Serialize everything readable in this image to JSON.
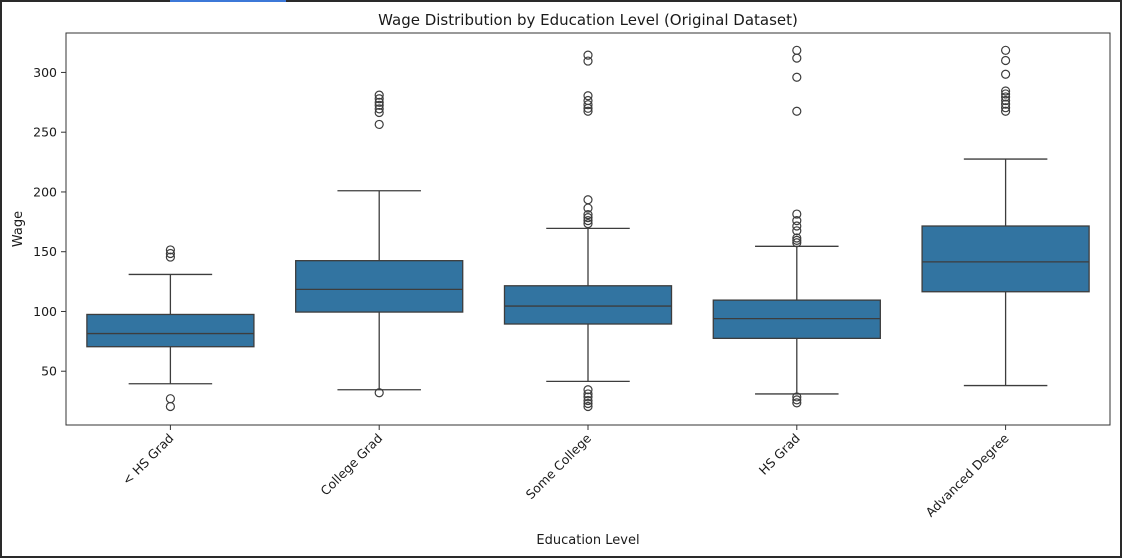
{
  "chart_data": {
    "type": "box",
    "title": "Wage Distribution by Education Level (Original Dataset)",
    "xlabel": "Education Level",
    "ylabel": "Wage",
    "ylim": [
      5,
      333
    ],
    "yticks": [
      50,
      100,
      150,
      200,
      250,
      300
    ],
    "grid": false,
    "box_color": "#3274a1",
    "line_color": "#3d3d3d",
    "categories": [
      "< HS Grad",
      "College Grad",
      "Some College",
      "HS Grad",
      "Advanced Degree"
    ],
    "boxes": [
      {
        "category": "< HS Grad",
        "whisker_low": 39.5,
        "q1": 70.5,
        "median": 81.5,
        "q3": 97.5,
        "whisker_high": 131,
        "outliers": [
          20.5,
          27,
          145.5,
          148.5,
          151.5
        ]
      },
      {
        "category": "College Grad",
        "whisker_low": 34.5,
        "q1": 99.5,
        "median": 118.5,
        "q3": 142.5,
        "whisker_high": 201,
        "outliers": [
          32,
          256.5,
          266.5,
          269.5,
          272.5,
          275,
          278,
          281
        ]
      },
      {
        "category": "Some College",
        "whisker_low": 41.5,
        "q1": 89.5,
        "median": 104.5,
        "q3": 121.5,
        "whisker_high": 169.5,
        "outliers": [
          20.5,
          23,
          25.5,
          28.5,
          31,
          34.5,
          173.5,
          176,
          178.5,
          181,
          186.5,
          193.5,
          267.5,
          270,
          273,
          276.5,
          280.5,
          309.5,
          314.5
        ]
      },
      {
        "category": "HS Grad",
        "whisker_low": 31,
        "q1": 77.5,
        "median": 94,
        "q3": 109.5,
        "whisker_high": 154.5,
        "outliers": [
          23.5,
          26,
          28.5,
          157.5,
          159.5,
          161.5,
          167.5,
          171.5,
          176,
          181.5,
          267.5,
          296,
          312,
          318.5
        ]
      },
      {
        "category": "Advanced Degree",
        "whisker_low": 38,
        "q1": 116.5,
        "median": 141.5,
        "q3": 171.5,
        "whisker_high": 227.5,
        "outliers": [
          267.5,
          270.5,
          273.5,
          276.5,
          279.5,
          282,
          284.5,
          298.5,
          310,
          318.5
        ]
      }
    ]
  }
}
